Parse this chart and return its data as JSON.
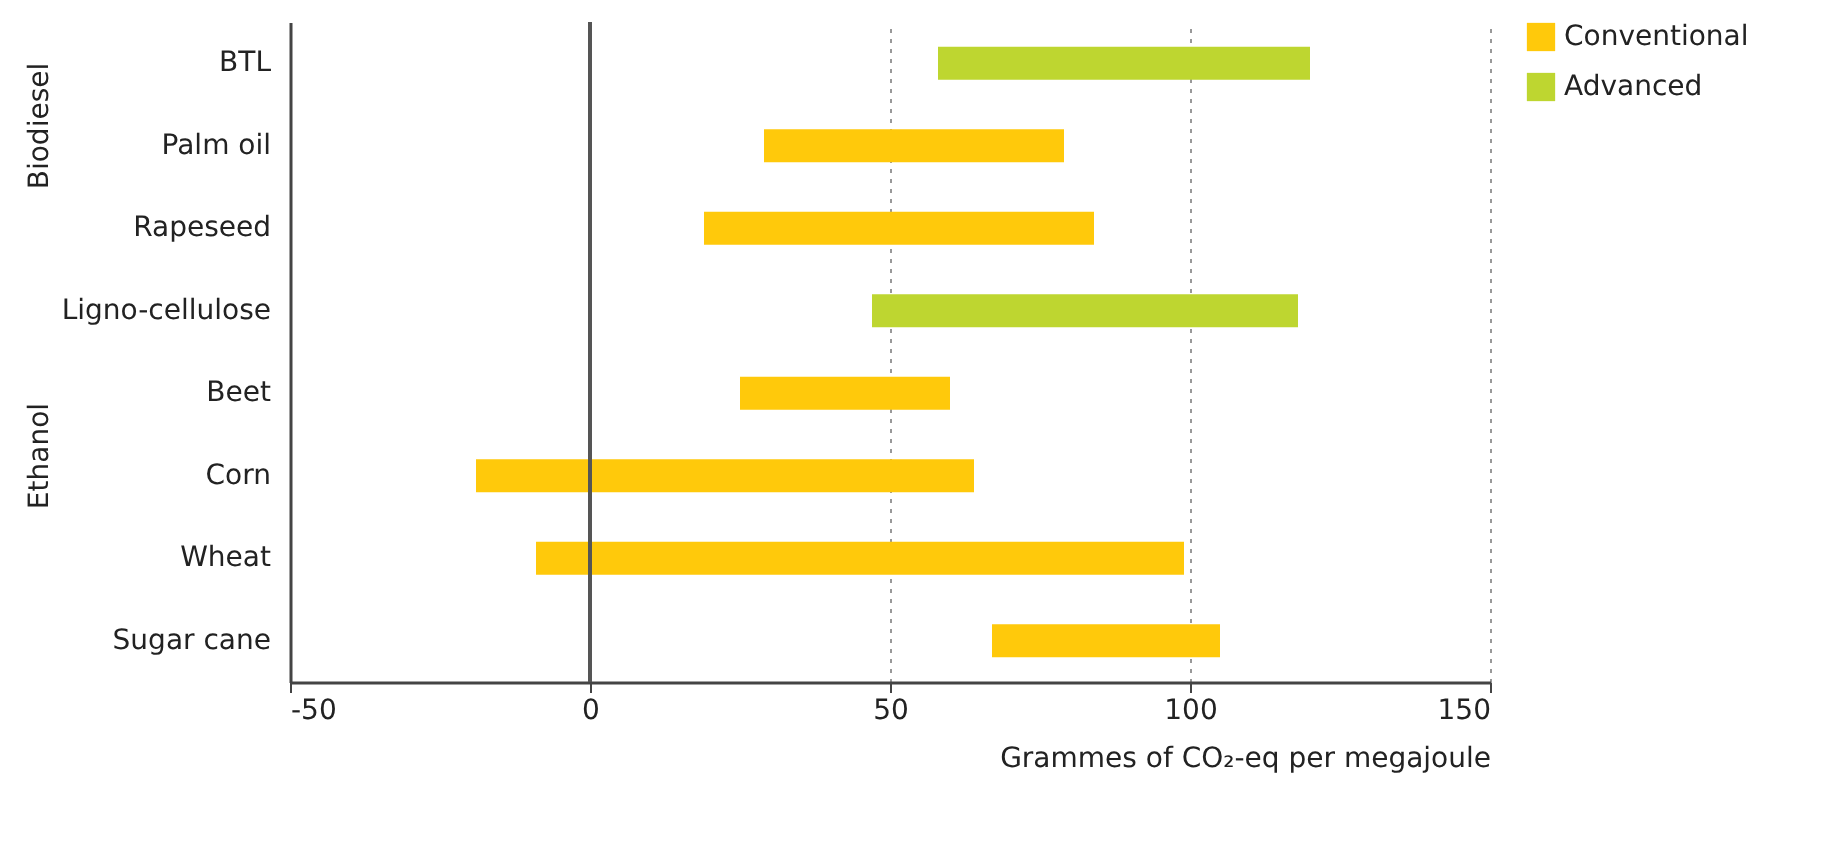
{
  "chart_data": {
    "type": "bar",
    "orientation": "horizontal",
    "categories": [
      "BTL",
      "Palm oil",
      "Rapeseed",
      "Ligno-cellulose",
      "Beet",
      "Corn",
      "Wheat",
      "Sugar cane"
    ],
    "series": [
      {
        "name": "Conventional",
        "color": "#ffc90b",
        "values": [
          null,
          50,
          65,
          null,
          35,
          83,
          108,
          38
        ],
        "base": [
          null,
          29,
          19,
          null,
          25,
          -19,
          -9,
          67
        ]
      },
      {
        "name": "Advanced",
        "color": "#bed630",
        "values": [
          62,
          null,
          null,
          71,
          null,
          null,
          null,
          null
        ],
        "base": [
          58,
          null,
          null,
          47,
          null,
          null,
          null,
          null
        ]
      }
    ],
    "xlabel": "Grammes of CO₂-eq per megajoule",
    "xlim": [
      -50,
      150
    ],
    "xticks": [
      -50,
      0,
      50,
      100,
      150
    ],
    "grid": "x",
    "legend": "top right",
    "ref_lines": [
      {
        "axis": "x",
        "value": 0,
        "color": "#555555"
      }
    ],
    "annotations": [
      "Biodiesel",
      "Ethanol"
    ]
  }
}
